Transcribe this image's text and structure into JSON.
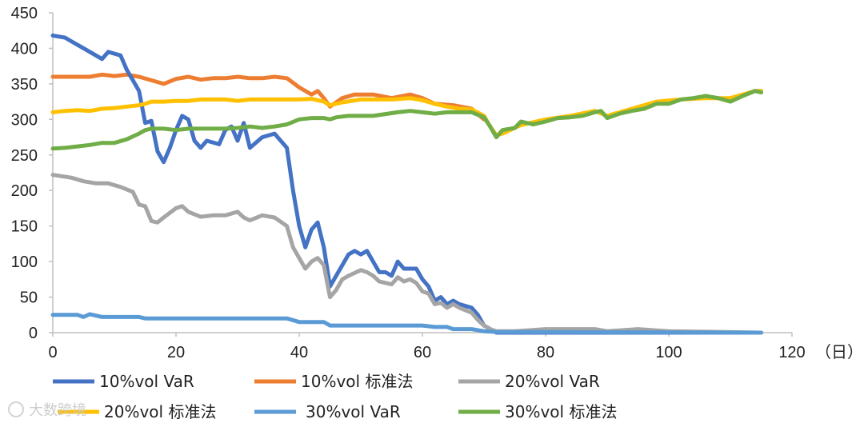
{
  "chart_data": {
    "type": "line",
    "title": "",
    "xlabel": "（日）",
    "ylabel": "",
    "xlim": [
      0,
      120
    ],
    "ylim": [
      0,
      450
    ],
    "x_ticks": [
      "0",
      "20",
      "40",
      "60",
      "80",
      "100",
      "120"
    ],
    "y_ticks": [
      "0",
      "50",
      "100",
      "150",
      "200",
      "250",
      "300",
      "350",
      "400",
      "450"
    ],
    "grid": false,
    "legend_position": "bottom",
    "series": [
      {
        "name": "10%vol 标准法",
        "color": "#ED7D31",
        "points": [
          [
            0,
            360
          ],
          [
            3,
            360
          ],
          [
            6,
            360
          ],
          [
            8,
            363
          ],
          [
            10,
            361
          ],
          [
            12,
            363
          ],
          [
            14,
            360
          ],
          [
            16,
            355
          ],
          [
            18,
            350
          ],
          [
            20,
            357
          ],
          [
            22,
            360
          ],
          [
            24,
            356
          ],
          [
            26,
            358
          ],
          [
            28,
            358
          ],
          [
            30,
            360
          ],
          [
            32,
            358
          ],
          [
            34,
            358
          ],
          [
            36,
            360
          ],
          [
            38,
            358
          ],
          [
            40,
            345
          ],
          [
            42,
            335
          ],
          [
            43,
            340
          ],
          [
            44,
            330
          ],
          [
            45,
            318
          ],
          [
            47,
            330
          ],
          [
            49,
            335
          ],
          [
            52,
            335
          ],
          [
            55,
            330
          ],
          [
            58,
            335
          ],
          [
            60,
            330
          ],
          [
            62,
            322
          ],
          [
            65,
            320
          ],
          [
            68,
            315
          ],
          [
            70,
            300
          ]
        ]
      },
      {
        "name": "10%vol VaR",
        "color": "#4472C4",
        "points": [
          [
            0,
            418
          ],
          [
            2,
            415
          ],
          [
            3,
            410
          ],
          [
            5,
            400
          ],
          [
            7,
            390
          ],
          [
            8,
            385
          ],
          [
            9,
            395
          ],
          [
            11,
            390
          ],
          [
            12,
            370
          ],
          [
            13,
            355
          ],
          [
            14,
            340
          ],
          [
            15,
            295
          ],
          [
            16,
            298
          ],
          [
            17,
            255
          ],
          [
            18,
            240
          ],
          [
            19,
            260
          ],
          [
            20,
            285
          ],
          [
            21,
            305
          ],
          [
            22,
            300
          ],
          [
            23,
            270
          ],
          [
            24,
            260
          ],
          [
            25,
            270
          ],
          [
            27,
            265
          ],
          [
            28,
            285
          ],
          [
            29,
            290
          ],
          [
            30,
            270
          ],
          [
            31,
            295
          ],
          [
            32,
            260
          ],
          [
            34,
            275
          ],
          [
            36,
            280
          ],
          [
            38,
            260
          ],
          [
            39,
            200
          ],
          [
            40,
            150
          ],
          [
            41,
            120
          ],
          [
            42,
            145
          ],
          [
            43,
            155
          ],
          [
            44,
            120
          ],
          [
            45,
            65
          ],
          [
            46,
            80
          ],
          [
            47,
            95
          ],
          [
            48,
            110
          ],
          [
            49,
            115
          ],
          [
            50,
            110
          ],
          [
            51,
            115
          ],
          [
            52,
            100
          ],
          [
            53,
            85
          ],
          [
            54,
            85
          ],
          [
            55,
            80
          ],
          [
            56,
            100
          ],
          [
            57,
            90
          ],
          [
            58,
            90
          ],
          [
            59,
            90
          ],
          [
            60,
            75
          ],
          [
            61,
            65
          ],
          [
            62,
            45
          ],
          [
            63,
            50
          ],
          [
            64,
            40
          ],
          [
            65,
            45
          ],
          [
            66,
            40
          ],
          [
            68,
            35
          ],
          [
            69,
            25
          ],
          [
            70,
            10
          ],
          [
            72,
            0
          ],
          [
            115,
            0
          ]
        ]
      },
      {
        "name": "20%vol VaR",
        "color": "#A5A5A5",
        "points": [
          [
            0,
            222
          ],
          [
            3,
            218
          ],
          [
            5,
            213
          ],
          [
            7,
            210
          ],
          [
            9,
            210
          ],
          [
            11,
            205
          ],
          [
            13,
            198
          ],
          [
            14,
            180
          ],
          [
            15,
            178
          ],
          [
            16,
            157
          ],
          [
            17,
            155
          ],
          [
            18,
            162
          ],
          [
            20,
            175
          ],
          [
            21,
            178
          ],
          [
            22,
            170
          ],
          [
            24,
            163
          ],
          [
            26,
            165
          ],
          [
            28,
            165
          ],
          [
            30,
            170
          ],
          [
            31,
            162
          ],
          [
            32,
            158
          ],
          [
            34,
            165
          ],
          [
            36,
            162
          ],
          [
            38,
            150
          ],
          [
            39,
            120
          ],
          [
            40,
            105
          ],
          [
            41,
            90
          ],
          [
            42,
            100
          ],
          [
            43,
            105
          ],
          [
            44,
            95
          ],
          [
            45,
            50
          ],
          [
            46,
            60
          ],
          [
            47,
            75
          ],
          [
            48,
            80
          ],
          [
            50,
            88
          ],
          [
            51,
            85
          ],
          [
            52,
            80
          ],
          [
            53,
            72
          ],
          [
            54,
            70
          ],
          [
            55,
            68
          ],
          [
            56,
            78
          ],
          [
            57,
            72
          ],
          [
            58,
            75
          ],
          [
            59,
            70
          ],
          [
            60,
            58
          ],
          [
            61,
            55
          ],
          [
            62,
            40
          ],
          [
            63,
            42
          ],
          [
            64,
            35
          ],
          [
            65,
            40
          ],
          [
            66,
            35
          ],
          [
            68,
            28
          ],
          [
            69,
            18
          ],
          [
            70,
            10
          ],
          [
            71,
            5
          ],
          [
            72,
            2
          ],
          [
            75,
            2
          ],
          [
            80,
            5
          ],
          [
            85,
            5
          ],
          [
            88,
            5
          ],
          [
            90,
            2
          ],
          [
            95,
            5
          ],
          [
            100,
            2
          ],
          [
            115,
            0
          ]
        ]
      },
      {
        "name": "20%vol 标准法",
        "color": "#FFC000",
        "points": [
          [
            0,
            310
          ],
          [
            2,
            312
          ],
          [
            4,
            313
          ],
          [
            6,
            312
          ],
          [
            8,
            315
          ],
          [
            10,
            316
          ],
          [
            12,
            318
          ],
          [
            14,
            320
          ],
          [
            15,
            322
          ],
          [
            16,
            325
          ],
          [
            18,
            325
          ],
          [
            20,
            326
          ],
          [
            22,
            326
          ],
          [
            24,
            328
          ],
          [
            26,
            328
          ],
          [
            28,
            328
          ],
          [
            30,
            326
          ],
          [
            32,
            328
          ],
          [
            34,
            328
          ],
          [
            36,
            328
          ],
          [
            38,
            328
          ],
          [
            40,
            328
          ],
          [
            42,
            329
          ],
          [
            44,
            325
          ],
          [
            45,
            320
          ],
          [
            47,
            324
          ],
          [
            50,
            328
          ],
          [
            55,
            328
          ],
          [
            58,
            330
          ],
          [
            60,
            327
          ],
          [
            62,
            322
          ],
          [
            64,
            318
          ],
          [
            66,
            315
          ],
          [
            68,
            314
          ],
          [
            70,
            305
          ],
          [
            71,
            290
          ],
          [
            72,
            278
          ],
          [
            73,
            280
          ],
          [
            76,
            292
          ],
          [
            80,
            300
          ],
          [
            84,
            305
          ],
          [
            88,
            312
          ],
          [
            90,
            305
          ],
          [
            94,
            315
          ],
          [
            98,
            325
          ],
          [
            102,
            328
          ],
          [
            106,
            330
          ],
          [
            110,
            330
          ],
          [
            114,
            340
          ],
          [
            115,
            340
          ]
        ]
      },
      {
        "name": "30%vol VaR",
        "color": "#5B9BD5",
        "points": [
          [
            0,
            25
          ],
          [
            2,
            25
          ],
          [
            4,
            25
          ],
          [
            5,
            22
          ],
          [
            6,
            26
          ],
          [
            8,
            22
          ],
          [
            10,
            22
          ],
          [
            12,
            22
          ],
          [
            14,
            22
          ],
          [
            15,
            20
          ],
          [
            20,
            20
          ],
          [
            30,
            20
          ],
          [
            38,
            20
          ],
          [
            40,
            15
          ],
          [
            44,
            15
          ],
          [
            45,
            10
          ],
          [
            50,
            10
          ],
          [
            60,
            10
          ],
          [
            62,
            8
          ],
          [
            64,
            8
          ],
          [
            65,
            5
          ],
          [
            68,
            5
          ],
          [
            70,
            2
          ],
          [
            72,
            1
          ],
          [
            115,
            0
          ]
        ]
      },
      {
        "name": "30%vol 标准法",
        "color": "#70AD47",
        "points": [
          [
            0,
            259
          ],
          [
            2,
            260
          ],
          [
            4,
            262
          ],
          [
            6,
            264
          ],
          [
            8,
            267
          ],
          [
            10,
            267
          ],
          [
            12,
            272
          ],
          [
            14,
            280
          ],
          [
            15,
            285
          ],
          [
            16,
            287
          ],
          [
            18,
            287
          ],
          [
            20,
            285
          ],
          [
            22,
            287
          ],
          [
            24,
            287
          ],
          [
            26,
            287
          ],
          [
            28,
            287
          ],
          [
            30,
            288
          ],
          [
            32,
            290
          ],
          [
            34,
            288
          ],
          [
            36,
            290
          ],
          [
            38,
            293
          ],
          [
            40,
            300
          ],
          [
            42,
            302
          ],
          [
            44,
            302
          ],
          [
            45,
            300
          ],
          [
            46,
            303
          ],
          [
            48,
            305
          ],
          [
            52,
            305
          ],
          [
            56,
            310
          ],
          [
            58,
            312
          ],
          [
            60,
            310
          ],
          [
            62,
            308
          ],
          [
            64,
            310
          ],
          [
            68,
            310
          ],
          [
            70,
            303
          ],
          [
            71,
            290
          ],
          [
            72,
            275
          ],
          [
            73,
            285
          ],
          [
            75,
            288
          ],
          [
            76,
            297
          ],
          [
            78,
            293
          ],
          [
            80,
            297
          ],
          [
            82,
            302
          ],
          [
            84,
            303
          ],
          [
            86,
            305
          ],
          [
            88,
            310
          ],
          [
            89,
            312
          ],
          [
            90,
            302
          ],
          [
            92,
            308
          ],
          [
            94,
            312
          ],
          [
            96,
            315
          ],
          [
            98,
            322
          ],
          [
            100,
            322
          ],
          [
            102,
            328
          ],
          [
            104,
            330
          ],
          [
            106,
            333
          ],
          [
            108,
            330
          ],
          [
            110,
            325
          ],
          [
            112,
            333
          ],
          [
            114,
            340
          ],
          [
            115,
            338
          ]
        ]
      }
    ]
  },
  "legend": {
    "items": [
      {
        "label": "10%vol VaR",
        "color": "#4472C4"
      },
      {
        "label": "10%vol 标准法",
        "color": "#ED7D31"
      },
      {
        "label": "20%vol VaR",
        "color": "#A5A5A5"
      },
      {
        "label": "20%vol 标准法",
        "color": "#FFC000"
      },
      {
        "label": "30%vol VaR",
        "color": "#5B9BD5"
      },
      {
        "label": "30%vol 标准法",
        "color": "#70AD47"
      }
    ]
  },
  "watermark": {
    "text": "大数跨境"
  }
}
